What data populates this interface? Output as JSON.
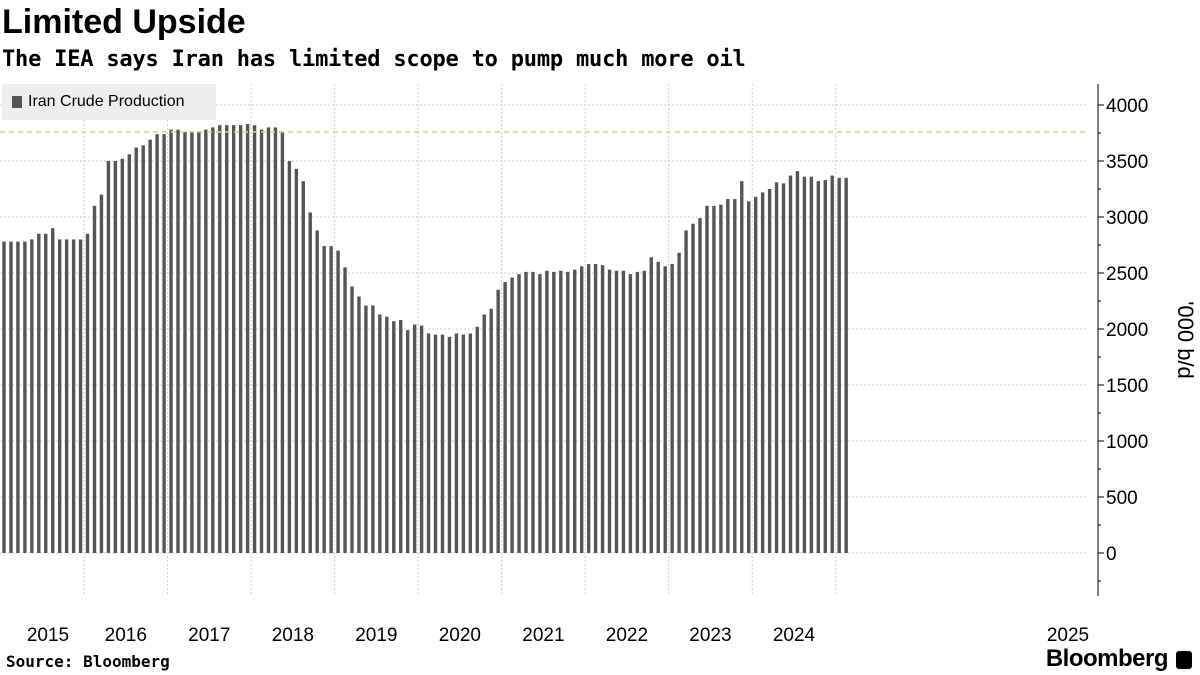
{
  "title": "Limited Upside",
  "subtitle": "The IEA says Iran has limited scope to pump much more oil",
  "legend_label": "Iran Crude Production",
  "source": "Source: Bloomberg",
  "brand": "Bloomberg",
  "colors": {
    "bar": "#555555",
    "grid": "#cfcfcf",
    "reference": "#c8df8a"
  },
  "chart_data": {
    "type": "bar",
    "title": "Limited Upside",
    "subtitle": "The IEA says Iran has limited scope to pump much more oil",
    "ylabel": "'000 b/d",
    "xlabel": "",
    "ylim": [
      -350,
      4150
    ],
    "yticks": [
      0,
      500,
      1000,
      1500,
      2000,
      2500,
      3000,
      3500,
      4000
    ],
    "reference_line": 3760,
    "legend": [
      "Iran Crude Production"
    ],
    "legend_position": "top-left",
    "x_tick_labels": [
      "2015",
      "2016",
      "2017",
      "2018",
      "2019",
      "2020",
      "2021",
      "2022",
      "2023",
      "2024",
      "2025"
    ],
    "start": "2015-01",
    "frequency": "monthly",
    "series": [
      {
        "name": "Iran Crude Production",
        "values": [
          2780,
          2780,
          2780,
          2780,
          2800,
          2850,
          2850,
          2900,
          2800,
          2800,
          2800,
          2800,
          2850,
          3100,
          3200,
          3500,
          3500,
          3520,
          3560,
          3620,
          3640,
          3690,
          3740,
          3740,
          3780,
          3780,
          3760,
          3760,
          3760,
          3780,
          3800,
          3820,
          3820,
          3820,
          3820,
          3830,
          3820,
          3780,
          3800,
          3800,
          3760,
          3500,
          3430,
          3320,
          3040,
          2880,
          2740,
          2740,
          2700,
          2550,
          2380,
          2290,
          2210,
          2210,
          2130,
          2110,
          2070,
          2080,
          1990,
          2040,
          2030,
          1960,
          1950,
          1950,
          1930,
          1960,
          1950,
          1960,
          2020,
          2130,
          2180,
          2350,
          2420,
          2460,
          2490,
          2510,
          2510,
          2490,
          2520,
          2510,
          2520,
          2510,
          2530,
          2560,
          2580,
          2580,
          2570,
          2530,
          2520,
          2520,
          2490,
          2510,
          2520,
          2640,
          2600,
          2560,
          2580,
          2680,
          2880,
          2940,
          2990,
          3100,
          3100,
          3110,
          3160,
          3160,
          3320,
          3140,
          3180,
          3220,
          3250,
          3310,
          3300,
          3370,
          3410,
          3360,
          3360,
          3320,
          3330,
          3370,
          3350,
          3350
        ]
      }
    ]
  }
}
